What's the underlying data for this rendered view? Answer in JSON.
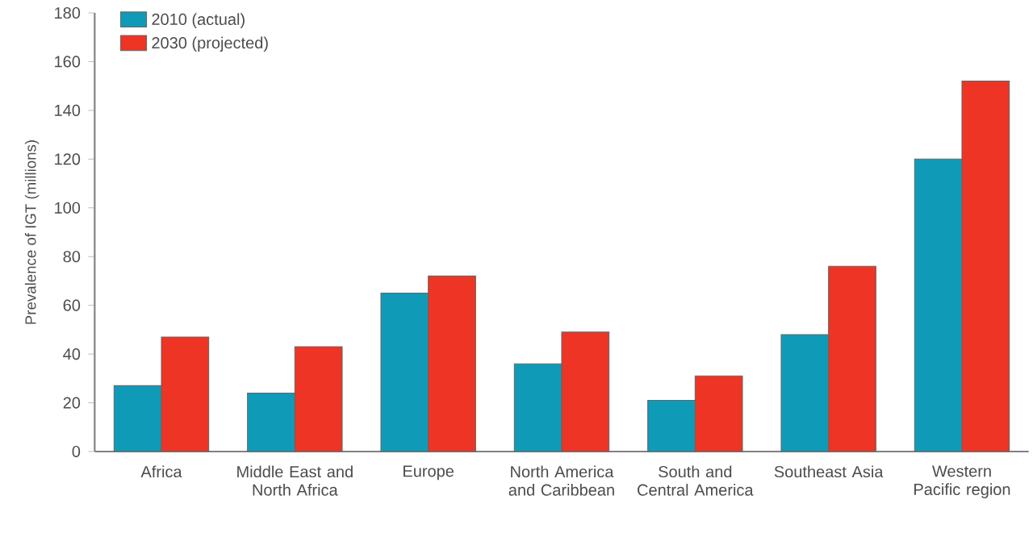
{
  "chart_data": {
    "type": "bar",
    "ylabel": "Prevalence of IGT (millions)",
    "categories": [
      "Africa",
      "Middle East and North Africa",
      "Europe",
      "North America and Caribbean",
      "South and Central America",
      "Southeast Asia",
      "Western Pacific region"
    ],
    "series": [
      {
        "name": "2010 (actual)",
        "color": "#0f9bb8",
        "values": [
          27,
          24,
          65,
          36,
          21,
          48,
          120
        ]
      },
      {
        "name": "2030 (projected)",
        "color": "#ee3424",
        "values": [
          47,
          43,
          72,
          49,
          31,
          76,
          152
        ]
      }
    ],
    "ylim": [
      0,
      180
    ],
    "yticks": [
      0,
      20,
      40,
      60,
      80,
      100,
      120,
      140,
      160,
      180
    ],
    "grid": false,
    "legend": "top left"
  }
}
